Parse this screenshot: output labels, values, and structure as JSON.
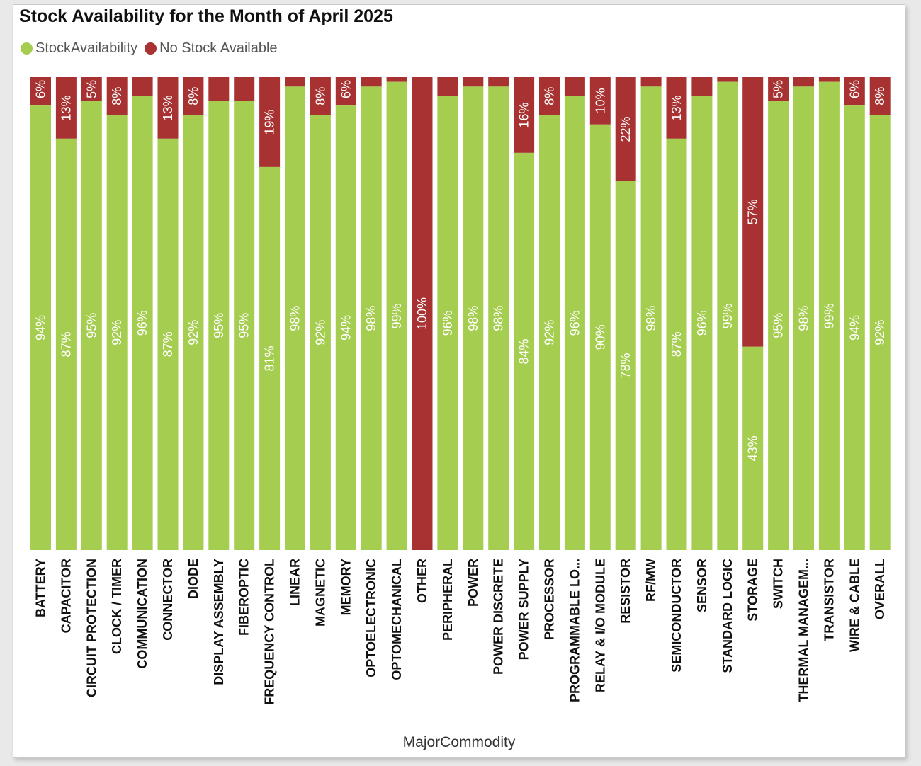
{
  "title": "Stock Availability for the Month of April 2025",
  "legend": [
    {
      "label": "StockAvailability",
      "color": "#a5cd50"
    },
    {
      "label": "No Stock Available",
      "color": "#a83232"
    }
  ],
  "colors": {
    "available": "#a5cd50",
    "unavailable": "#a83232",
    "label_text": "#ffffff"
  },
  "chart_data": {
    "type": "bar",
    "stacked": true,
    "orientation": "vertical",
    "xlabel": "MajorCommodity",
    "ylabel": "",
    "ylim": [
      0,
      100
    ],
    "grid": false,
    "legend_position": "top-left",
    "categories": [
      "BATTERY",
      "CAPACITOR",
      "CIRCUIT PROTECTION",
      "CLOCK / TIMER",
      "COMMUNICATION",
      "CONNECTOR",
      "DIODE",
      "DISPLAY ASSEMBLY",
      "FIBEROPTIC",
      "FREQUENCY CONTROL",
      "LINEAR",
      "MAGNETIC",
      "MEMORY",
      "OPTOELECTRONIC",
      "OPTOMECHANICAL",
      "OTHER",
      "PERIPHERAL",
      "POWER",
      "POWER DISCRETE",
      "POWER SUPPLY",
      "PROCESSOR",
      "PROGRAMMABLE LO...",
      "RELAY & I/O MODULE",
      "RESISTOR",
      "RF/MW",
      "SEMICONDUCTOR",
      "SENSOR",
      "STANDARD LOGIC",
      "STORAGE",
      "SWITCH",
      "THERMAL MANAGEM...",
      "TRANSISTOR",
      "WIRE & CABLE",
      "OVERALL"
    ],
    "series": [
      {
        "name": "StockAvailability",
        "values": [
          94,
          87,
          95,
          92,
          96,
          87,
          92,
          95,
          95,
          81,
          98,
          92,
          94,
          98,
          99,
          0,
          96,
          98,
          98,
          84,
          92,
          96,
          90,
          78,
          98,
          87,
          96,
          99,
          43,
          95,
          98,
          99,
          94,
          92
        ]
      },
      {
        "name": "No Stock Available",
        "values": [
          6,
          13,
          5,
          8,
          4,
          13,
          8,
          5,
          5,
          19,
          2,
          8,
          6,
          2,
          1,
          100,
          4,
          2,
          2,
          16,
          8,
          4,
          10,
          22,
          2,
          13,
          4,
          1,
          57,
          5,
          2,
          1,
          6,
          8
        ]
      }
    ],
    "data_labels": {
      "StockAvailability": [
        "94%",
        "87%",
        "95%",
        "92%",
        "96%",
        "87%",
        "92%",
        "95%",
        "95%",
        "81%",
        "98%",
        "92%",
        "94%",
        "98%",
        "99%",
        "",
        "96%",
        "98%",
        "98%",
        "84%",
        "92%",
        "96%",
        "90%",
        "78%",
        "98%",
        "87%",
        "96%",
        "99%",
        "43%",
        "95%",
        "98%",
        "99%",
        "94%",
        "92%"
      ],
      "No Stock Available": [
        "6%",
        "13%",
        "5%",
        "8%",
        "",
        "13%",
        "8%",
        "",
        "",
        "19%",
        "",
        "8%",
        "6%",
        "",
        "",
        "100%",
        "",
        "",
        "",
        "16%",
        "8%",
        "",
        "10%",
        "22%",
        "",
        "13%",
        "",
        "",
        "57%",
        "5%",
        "",
        "",
        "6%",
        "8%"
      ]
    }
  }
}
